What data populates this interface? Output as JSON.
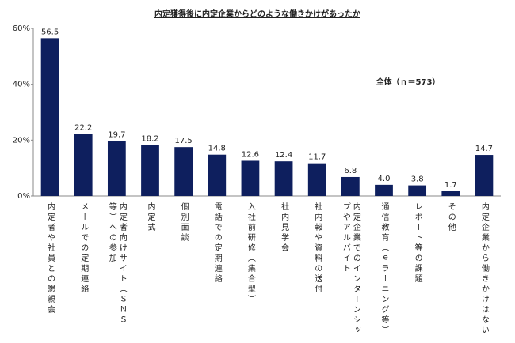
{
  "chart_data": {
    "type": "bar",
    "title": "内定獲得後に内定企業からどのような働きかけがあったか",
    "annotation": "全体（ｎ＝573）",
    "categories": [
      "内定者や社員との懇親会",
      "メールでの定期連絡",
      "内定者向けサイト（ＳＮＳ等）への参加",
      "内定式",
      "個別面談",
      "電話での定期連絡",
      "入社前研修（集合型）",
      "社内見学会",
      "社内報や資料の送付",
      "内定企業でのインターンシップやアルバイト",
      "通信教育（ｅラーニング等）",
      "レポート等の課題",
      "その他",
      "内定企業から働きかけはない"
    ],
    "values": [
      56.5,
      22.2,
      19.7,
      18.2,
      17.5,
      14.8,
      12.6,
      12.4,
      11.7,
      6.8,
      4.0,
      3.8,
      1.7,
      14.7
    ],
    "value_labels": [
      "56.5",
      "22.2",
      "19.7",
      "18.2",
      "17.5",
      "14.8",
      "12.6",
      "12.4",
      "11.7",
      "6.8",
      "4.0",
      "3.8",
      "1.7",
      "14.7"
    ],
    "color": "#0e1f5e",
    "ylim": [
      0,
      60
    ],
    "yticks": [
      {
        "value": 0,
        "label": "0%"
      },
      {
        "value": 20,
        "label": "20%"
      },
      {
        "value": 40,
        "label": "40%"
      },
      {
        "value": 60,
        "label": "60%"
      }
    ]
  }
}
